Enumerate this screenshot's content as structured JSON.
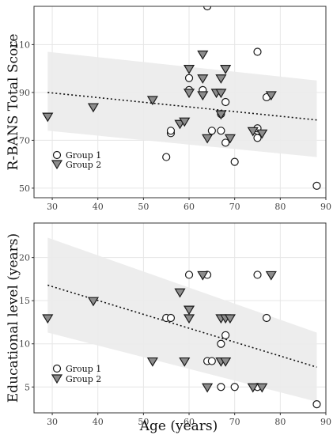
{
  "chart_data": [
    {
      "type": "scatter",
      "title": "",
      "xlabel": "",
      "ylabel": "R-BANS Total Score",
      "xlim": [
        26,
        90
      ],
      "ylim": [
        46,
        126
      ],
      "xticks": [
        "30",
        "40",
        "50",
        "60",
        "70",
        "80",
        "90"
      ],
      "yticks": [
        "50",
        "70",
        "90",
        "110"
      ],
      "grid": true,
      "legend": "bottom-left",
      "legend_entries": [
        "Group 1",
        "Group 2"
      ],
      "series": [
        {
          "name": "Group 1",
          "marker": "circle",
          "points": [
            [
              55,
              63
            ],
            [
              56,
              73
            ],
            [
              56,
              74
            ],
            [
              60,
              91
            ],
            [
              60,
              96
            ],
            [
              63,
              91
            ],
            [
              64,
              126
            ],
            [
              65,
              74
            ],
            [
              67,
              74
            ],
            [
              67,
              81
            ],
            [
              68,
              69
            ],
            [
              68,
              86
            ],
            [
              70,
              61
            ],
            [
              75,
              107
            ],
            [
              75,
              71
            ],
            [
              75,
              74
            ],
            [
              75,
              75
            ],
            [
              77,
              88
            ],
            [
              88,
              51
            ]
          ]
        },
        {
          "name": "Group 2",
          "marker": "triangle-down",
          "points": [
            [
              29,
              80
            ],
            [
              39,
              84
            ],
            [
              52,
              87
            ],
            [
              58,
              77
            ],
            [
              59,
              78
            ],
            [
              60,
              90
            ],
            [
              60,
              100
            ],
            [
              63,
              89
            ],
            [
              63,
              96
            ],
            [
              63,
              106
            ],
            [
              64,
              71
            ],
            [
              66,
              90
            ],
            [
              67,
              81
            ],
            [
              67,
              90
            ],
            [
              67,
              96
            ],
            [
              68,
              100
            ],
            [
              69,
              71
            ],
            [
              74,
              74
            ],
            [
              76,
              73
            ],
            [
              78,
              89
            ]
          ]
        }
      ],
      "trend": {
        "x": [
          29,
          88
        ],
        "y": [
          90,
          78.5
        ]
      },
      "band": {
        "x": [
          29,
          88
        ],
        "upper": [
          107,
          95
        ],
        "lower": [
          74,
          63
        ]
      }
    },
    {
      "type": "scatter",
      "title": "",
      "xlabel": "Age (years)",
      "ylabel": "Educational level (years)",
      "xlim": [
        26,
        90
      ],
      "ylim": [
        2,
        24
      ],
      "xticks": [
        "30",
        "40",
        "50",
        "60",
        "70",
        "80",
        "90"
      ],
      "yticks": [
        "5",
        "10",
        "15",
        "20"
      ],
      "grid": true,
      "legend": "bottom-left",
      "legend_entries": [
        "Group 1",
        "Group 2"
      ],
      "series": [
        {
          "name": "Group 1",
          "marker": "circle",
          "points": [
            [
              55,
              13
            ],
            [
              56,
              13
            ],
            [
              60,
              18
            ],
            [
              64,
              8
            ],
            [
              64,
              18
            ],
            [
              65,
              8
            ],
            [
              67,
              5
            ],
            [
              67,
              10
            ],
            [
              68,
              11
            ],
            [
              70,
              5
            ],
            [
              75,
              5
            ],
            [
              75,
              18
            ],
            [
              77,
              13
            ],
            [
              88,
              3
            ]
          ]
        },
        {
          "name": "Group 2",
          "marker": "triangle-down",
          "points": [
            [
              29,
              13
            ],
            [
              39,
              15
            ],
            [
              52,
              8
            ],
            [
              58,
              16
            ],
            [
              59,
              8
            ],
            [
              60,
              13
            ],
            [
              60,
              14
            ],
            [
              63,
              18
            ],
            [
              64,
              5
            ],
            [
              67,
              8
            ],
            [
              67,
              13
            ],
            [
              68,
              8
            ],
            [
              68,
              13
            ],
            [
              69,
              13
            ],
            [
              74,
              5
            ],
            [
              76,
              5
            ],
            [
              78,
              18
            ]
          ]
        }
      ],
      "trend": {
        "x": [
          29,
          88
        ],
        "y": [
          16.8,
          7.3
        ]
      },
      "band": {
        "x": [
          29,
          88
        ],
        "upper": [
          22.3,
          11.3
        ],
        "lower": [
          11.3,
          3.3
        ]
      }
    }
  ],
  "colors": {
    "group1_fill": "#ffffff",
    "group2_fill": "#8c8c8c",
    "marker_stroke": "#1a1a1a",
    "band": "#ebebeb",
    "trend": "#111111",
    "grid": "#e6e6e6",
    "frame": "#333333"
  }
}
